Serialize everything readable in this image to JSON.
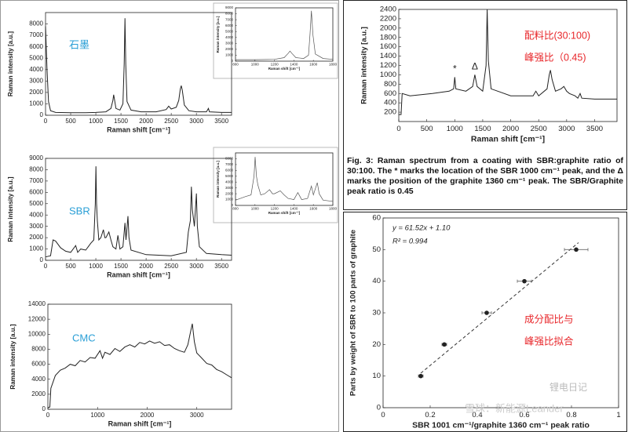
{
  "chart_data": [
    {
      "type": "line",
      "label": "石墨",
      "xlabel": "Raman shift [cm⁻¹]",
      "ylabel": "Raman intensity [a.u.]",
      "color": "#222222",
      "xlim": [
        0,
        3700
      ],
      "ylim": [
        0,
        9000
      ],
      "xticks": [
        0,
        500,
        1000,
        1500,
        2000,
        2500,
        3000,
        3500
      ],
      "yticks": [
        0,
        1000,
        2000,
        3000,
        4000,
        5000,
        6000,
        7000,
        8000
      ],
      "x": [
        0,
        30,
        60,
        100,
        200,
        500,
        800,
        1000,
        1200,
        1300,
        1340,
        1355,
        1370,
        1400,
        1480,
        1540,
        1565,
        1580,
        1595,
        1620,
        1700,
        1900,
        2200,
        2400,
        2450,
        2500,
        2600,
        2650,
        2680,
        2700,
        2720,
        2760,
        2850,
        3000,
        3200,
        3240,
        3260,
        3500,
        3700
      ],
      "values": [
        7800,
        4000,
        1200,
        400,
        250,
        230,
        230,
        250,
        300,
        600,
        1300,
        1800,
        1400,
        600,
        450,
        1000,
        4500,
        8500,
        4500,
        1200,
        450,
        300,
        300,
        500,
        800,
        550,
        700,
        1300,
        2300,
        2600,
        2200,
        900,
        400,
        300,
        300,
        600,
        300,
        250,
        250
      ]
    },
    {
      "type": "line",
      "xlabel": "Raman shift [cm⁻¹]",
      "ylabel": "Raman intensity [a.u.]",
      "color": "#555555",
      "xlim": [
        800,
        1800
      ],
      "ylim": [
        0,
        9000
      ],
      "xticks": [
        800,
        1000,
        1200,
        1400,
        1600,
        1800
      ],
      "yticks": [
        0,
        1000,
        2000,
        3000,
        4000,
        5000,
        6000,
        7000,
        8000,
        9000
      ],
      "x": [
        800,
        1000,
        1200,
        1300,
        1340,
        1360,
        1380,
        1420,
        1500,
        1550,
        1565,
        1580,
        1595,
        1620,
        1700,
        1800
      ],
      "values": [
        250,
        250,
        300,
        600,
        1300,
        1700,
        1300,
        600,
        450,
        1000,
        4500,
        8500,
        4500,
        1200,
        450,
        300
      ]
    },
    {
      "type": "line",
      "label": "SBR",
      "xlabel": "Raman shift [cm⁻¹]",
      "ylabel": "Raman intensity [a.u.]",
      "color": "#222222",
      "xlim": [
        0,
        3700
      ],
      "ylim": [
        0,
        9000
      ],
      "xticks": [
        0,
        500,
        1000,
        1500,
        2000,
        2500,
        3000,
        3500
      ],
      "yticks": [
        0,
        1000,
        2000,
        3000,
        4000,
        5000,
        6000,
        7000,
        8000,
        9000
      ],
      "x": [
        0,
        100,
        150,
        200,
        300,
        400,
        500,
        600,
        640,
        700,
        800,
        850,
        900,
        960,
        990,
        1002,
        1015,
        1030,
        1060,
        1100,
        1150,
        1180,
        1200,
        1260,
        1300,
        1340,
        1400,
        1440,
        1480,
        1540,
        1580,
        1600,
        1640,
        1660,
        1700,
        2000,
        2500,
        2800,
        2840,
        2880,
        2900,
        2920,
        2960,
        3000,
        3020,
        3060,
        3200,
        3500,
        3700
      ],
      "values": [
        300,
        400,
        1800,
        1700,
        1100,
        800,
        700,
        1300,
        700,
        1000,
        900,
        1200,
        1500,
        1800,
        5000,
        8300,
        5000,
        3500,
        1800,
        2000,
        2700,
        2000,
        2000,
        2500,
        1800,
        1200,
        1000,
        2200,
        1000,
        1200,
        3300,
        1800,
        3900,
        2000,
        900,
        500,
        400,
        700,
        2500,
        3500,
        6500,
        4500,
        3000,
        5900,
        3000,
        1200,
        600,
        500,
        450
      ]
    },
    {
      "type": "line",
      "xlabel": "Raman shift [cm⁻¹]",
      "ylabel": "Raman intensity [a.u.]",
      "color": "#555555",
      "xlim": [
        800,
        1800
      ],
      "ylim": [
        0,
        9000
      ],
      "xticks": [
        800,
        1000,
        1200,
        1400,
        1600,
        1800
      ],
      "yticks": [
        0,
        1000,
        2000,
        3000,
        4000,
        5000,
        6000,
        7000,
        8000
      ],
      "x": [
        800,
        900,
        960,
        990,
        1002,
        1015,
        1030,
        1060,
        1100,
        1150,
        1180,
        1200,
        1260,
        1300,
        1340,
        1400,
        1440,
        1480,
        1540,
        1580,
        1600,
        1640,
        1660,
        1700,
        1800
      ],
      "values": [
        900,
        1500,
        1800,
        5000,
        8300,
        5000,
        3500,
        1800,
        2000,
        2700,
        2000,
        2000,
        2500,
        1800,
        1200,
        1000,
        2200,
        1000,
        1200,
        3300,
        1800,
        3900,
        2000,
        900,
        700
      ]
    },
    {
      "type": "line",
      "label": "CMC",
      "xlabel": "Raman shift [cm⁻¹]",
      "ylabel": "Raman intensity [a.u.]",
      "color": "#222222",
      "xlim": [
        0,
        3700
      ],
      "ylim": [
        0,
        14000
      ],
      "xticks": [
        0,
        1000,
        2000,
        3000
      ],
      "yticks": [
        0,
        2000,
        4000,
        6000,
        8000,
        10000,
        12000,
        14000
      ],
      "x": [
        0,
        40,
        60,
        150,
        250,
        350,
        450,
        550,
        650,
        750,
        850,
        950,
        1050,
        1100,
        1150,
        1250,
        1350,
        1450,
        1550,
        1650,
        1750,
        1850,
        1950,
        2050,
        2150,
        2250,
        2350,
        2450,
        2550,
        2650,
        2750,
        2820,
        2880,
        2910,
        2950,
        3000,
        3100,
        3200,
        3300,
        3400,
        3500,
        3600,
        3700
      ],
      "values": [
        200,
        300,
        2800,
        4500,
        5200,
        5500,
        6000,
        5800,
        6500,
        6300,
        6900,
        6800,
        7800,
        6800,
        7600,
        7300,
        8100,
        7700,
        8300,
        8600,
        8300,
        8900,
        8700,
        9100,
        8800,
        9000,
        8500,
        8600,
        8100,
        7800,
        7600,
        8600,
        10500,
        11400,
        9000,
        7500,
        6800,
        6100,
        5900,
        5300,
        5000,
        4600,
        4200
      ]
    },
    {
      "type": "line",
      "xlabel": "Raman shift [cm⁻¹]",
      "ylabel": "Raman intensity [a.u.]",
      "color": "#222222",
      "annotations": [
        "配料比(30:100)",
        "峰强比（0.45)",
        "*",
        "Δ"
      ],
      "xlim": [
        0,
        3900
      ],
      "ylim": [
        0,
        2400
      ],
      "xticks": [
        0,
        500,
        1000,
        1500,
        2000,
        2500,
        3000,
        3500
      ],
      "yticks": [
        200,
        400,
        600,
        800,
        1000,
        1200,
        1400,
        1600,
        1800,
        2000,
        2200,
        2400
      ],
      "x": [
        0,
        40,
        60,
        200,
        600,
        900,
        980,
        1000,
        1020,
        1200,
        1320,
        1360,
        1400,
        1500,
        1560,
        1580,
        1600,
        1650,
        2000,
        2400,
        2450,
        2500,
        2650,
        2690,
        2710,
        2740,
        2800,
        2900,
        2950,
        3000,
        3050,
        3150,
        3200,
        3240,
        3270,
        3500,
        3700,
        3900
      ],
      "values": [
        150,
        150,
        600,
        550,
        600,
        650,
        700,
        950,
        700,
        650,
        750,
        1000,
        750,
        650,
        1200,
        2400,
        1300,
        700,
        550,
        550,
        650,
        550,
        700,
        1000,
        1100,
        900,
        650,
        700,
        750,
        650,
        600,
        550,
        500,
        600,
        500,
        480,
        480,
        480
      ],
      "caption": "Fig. 3:  Raman spectrum from a coating with SBR:graphite ratio of 30:100. The * marks the location of the SBR 1000 cm⁻¹ peak, and the Δ marks the position of the graphite 1360 cm⁻¹ peak. The SBR/Graphite peak ratio is 0.45"
    },
    {
      "type": "scatter",
      "xlabel": "SBR 1001 cm⁻¹/graphite 1360 cm⁻¹ peak ratio",
      "ylabel": "Parts by weight of SBR to 100 parts of graphite",
      "color": "#222222",
      "fit_label": "y = 61.52x + 1.10",
      "r2_label": "R² = 0.994",
      "annotations": [
        "成分配比与",
        "峰强比拟合"
      ],
      "xlim": [
        0,
        1
      ],
      "ylim": [
        0,
        60
      ],
      "xticks": [
        0,
        0.2,
        0.4,
        0.6,
        0.8,
        1
      ],
      "yticks": [
        0,
        10,
        20,
        30,
        40,
        50,
        60
      ],
      "x": [
        0.16,
        0.26,
        0.44,
        0.6,
        0.82
      ],
      "values": [
        10,
        20,
        30,
        40,
        50
      ],
      "xerr": [
        0.01,
        0.01,
        0.02,
        0.03,
        0.05
      ],
      "fit_line": {
        "x": [
          0.16,
          0.83
        ],
        "values": [
          10.9,
          52.2
        ]
      },
      "watermarks": [
        "锂电日记",
        "雪球：新能源Leander"
      ]
    }
  ]
}
